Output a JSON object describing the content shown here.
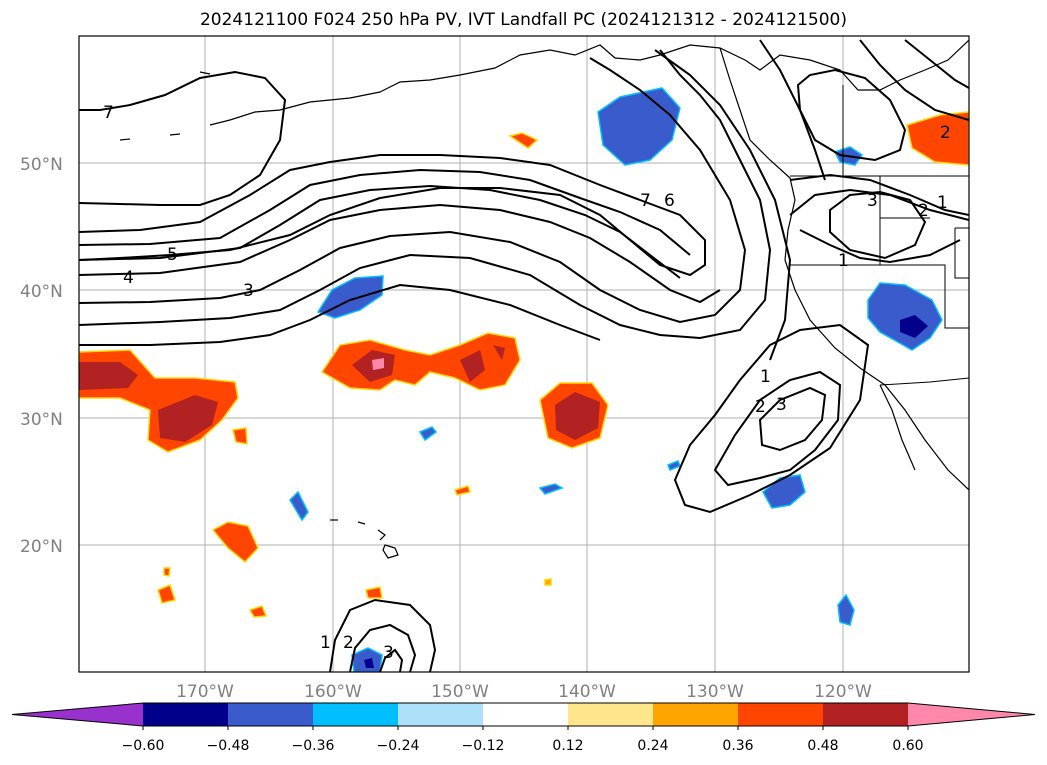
{
  "title": "2024121100 F024 250 hPa PV, IVT Landfall PC (2024121312 - 2024121500)",
  "lat_labels": [
    "50°N",
    "40°N",
    "30°N",
    "20°N"
  ],
  "lon_labels": [
    "170°W",
    "160°W",
    "150°W",
    "140°W",
    "130°W",
    "120°W"
  ],
  "contour_labels": [
    "7",
    "5",
    "4",
    "3",
    "7",
    "6",
    "1",
    "2",
    "3",
    "1",
    "2",
    "3",
    "1",
    "2",
    "3",
    "2",
    "1"
  ],
  "colorbar": {
    "colors": [
      "#9932CC",
      "#00008B",
      "#3A5BCC",
      "#00BFFF",
      "#ADE1FA",
      "#FFFFFF",
      "#FFE68C",
      "#FFA500",
      "#FF4500",
      "#B22222",
      "#FF88AA"
    ],
    "tick_labels": [
      "−0.60",
      "−0.48",
      "−0.36",
      "−0.24",
      "−0.12",
      "0.12",
      "0.24",
      "0.36",
      "0.48",
      "0.60"
    ]
  }
}
